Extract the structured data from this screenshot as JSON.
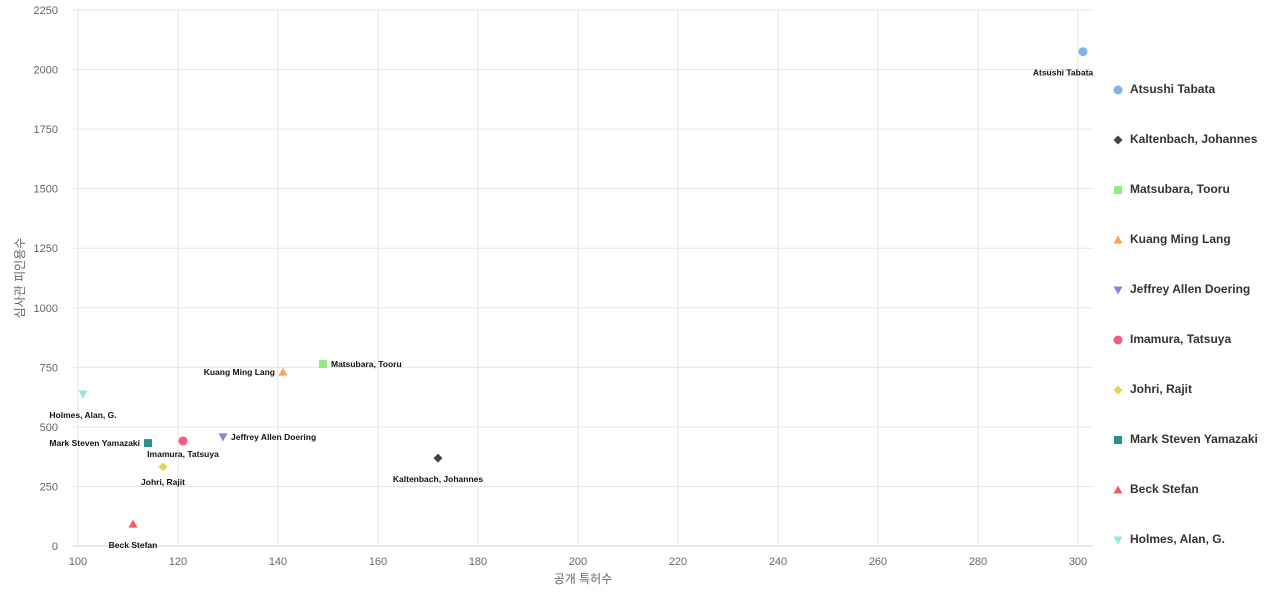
{
  "chart_data": {
    "type": "scatter",
    "xlabel": "공개 특허수",
    "ylabel": "심사관 피인용수",
    "xlim": [
      100,
      303
    ],
    "ylim": [
      0,
      2250
    ],
    "xticks": [
      100,
      120,
      140,
      160,
      180,
      200,
      220,
      240,
      260,
      280,
      300
    ],
    "yticks": [
      0,
      250,
      500,
      750,
      1000,
      1250,
      1500,
      1750,
      2000,
      2250
    ],
    "grid": true,
    "legend_position": "right",
    "series": [
      {
        "name": "Atsushi Tabata",
        "x": 301,
        "y": 2075,
        "color": "#7cb5ec",
        "marker": "circle"
      },
      {
        "name": "Kaltenbach, Johannes",
        "x": 172,
        "y": 369,
        "color": "#434348",
        "marker": "diamond"
      },
      {
        "name": "Matsubara, Tooru",
        "x": 149,
        "y": 764,
        "color": "#90ed7d",
        "marker": "square"
      },
      {
        "name": "Kuang Ming Lang",
        "x": 141,
        "y": 730,
        "color": "#f7a35c",
        "marker": "triangle"
      },
      {
        "name": "Jeffrey Allen Doering",
        "x": 129,
        "y": 458,
        "color": "#8085e9",
        "marker": "triangle-down"
      },
      {
        "name": "Imamura, Tatsuya",
        "x": 121,
        "y": 441,
        "color": "#f15c80",
        "marker": "circle"
      },
      {
        "name": "Johri, Rajit",
        "x": 117,
        "y": 332,
        "color": "#e4d354",
        "marker": "diamond"
      },
      {
        "name": "Mark Steven Yamazaki",
        "x": 114,
        "y": 432,
        "color": "#2b908f",
        "marker": "square"
      },
      {
        "name": "Beck Stefan",
        "x": 111,
        "y": 92,
        "color": "#f45b5b",
        "marker": "triangle"
      },
      {
        "name": "Holmes, Alan, G.",
        "x": 101,
        "y": 638,
        "color": "#91e8e1",
        "marker": "triangle-down"
      }
    ]
  }
}
